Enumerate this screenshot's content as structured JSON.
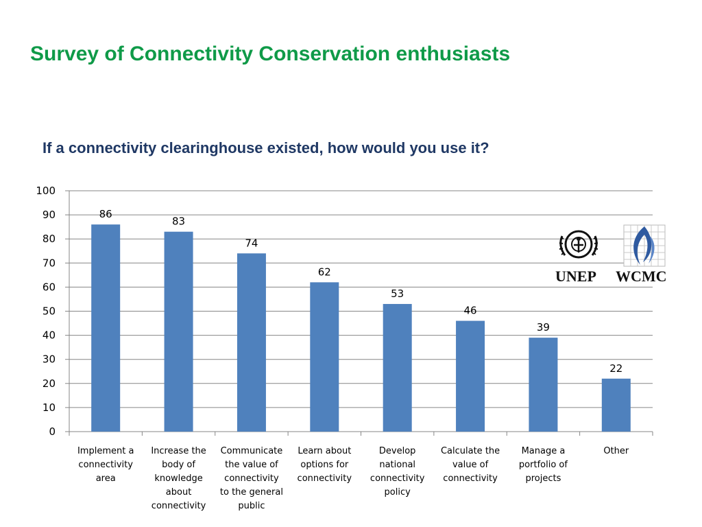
{
  "slide": {
    "title": "Survey of Connectivity Conservation enthusiasts"
  },
  "logos": {
    "unep": "UNEP",
    "wcmc": "WCMC"
  },
  "colors": {
    "title": "#0f9a48",
    "chart_title": "#1f3864",
    "bar": "#4f81bd",
    "grid": "#868686"
  },
  "chart_data": {
    "type": "bar",
    "title": "If a connectivity clearinghouse existed, how would you use it?",
    "xlabel": "",
    "ylabel": "",
    "ylim": [
      0,
      100
    ],
    "yticks": [
      0,
      10,
      20,
      30,
      40,
      50,
      60,
      70,
      80,
      90,
      100
    ],
    "grid": true,
    "legend": "none",
    "categories": [
      [
        "Implement a",
        "connectivity",
        "area"
      ],
      [
        "Increase the",
        "body of",
        "knowledge",
        "about",
        "connectivity"
      ],
      [
        "Communicate",
        "the value of",
        "connectivity",
        "to the general",
        "public"
      ],
      [
        "Learn about",
        "options for",
        "connectivity"
      ],
      [
        "Develop",
        "national",
        "connectivity",
        "policy"
      ],
      [
        "Calculate the",
        "value of",
        "connectivity"
      ],
      [
        "Manage a",
        "portfolio of",
        "projects"
      ],
      [
        "Other"
      ]
    ],
    "values": [
      86,
      83,
      74,
      62,
      53,
      46,
      39,
      22
    ],
    "data_labels": true
  }
}
